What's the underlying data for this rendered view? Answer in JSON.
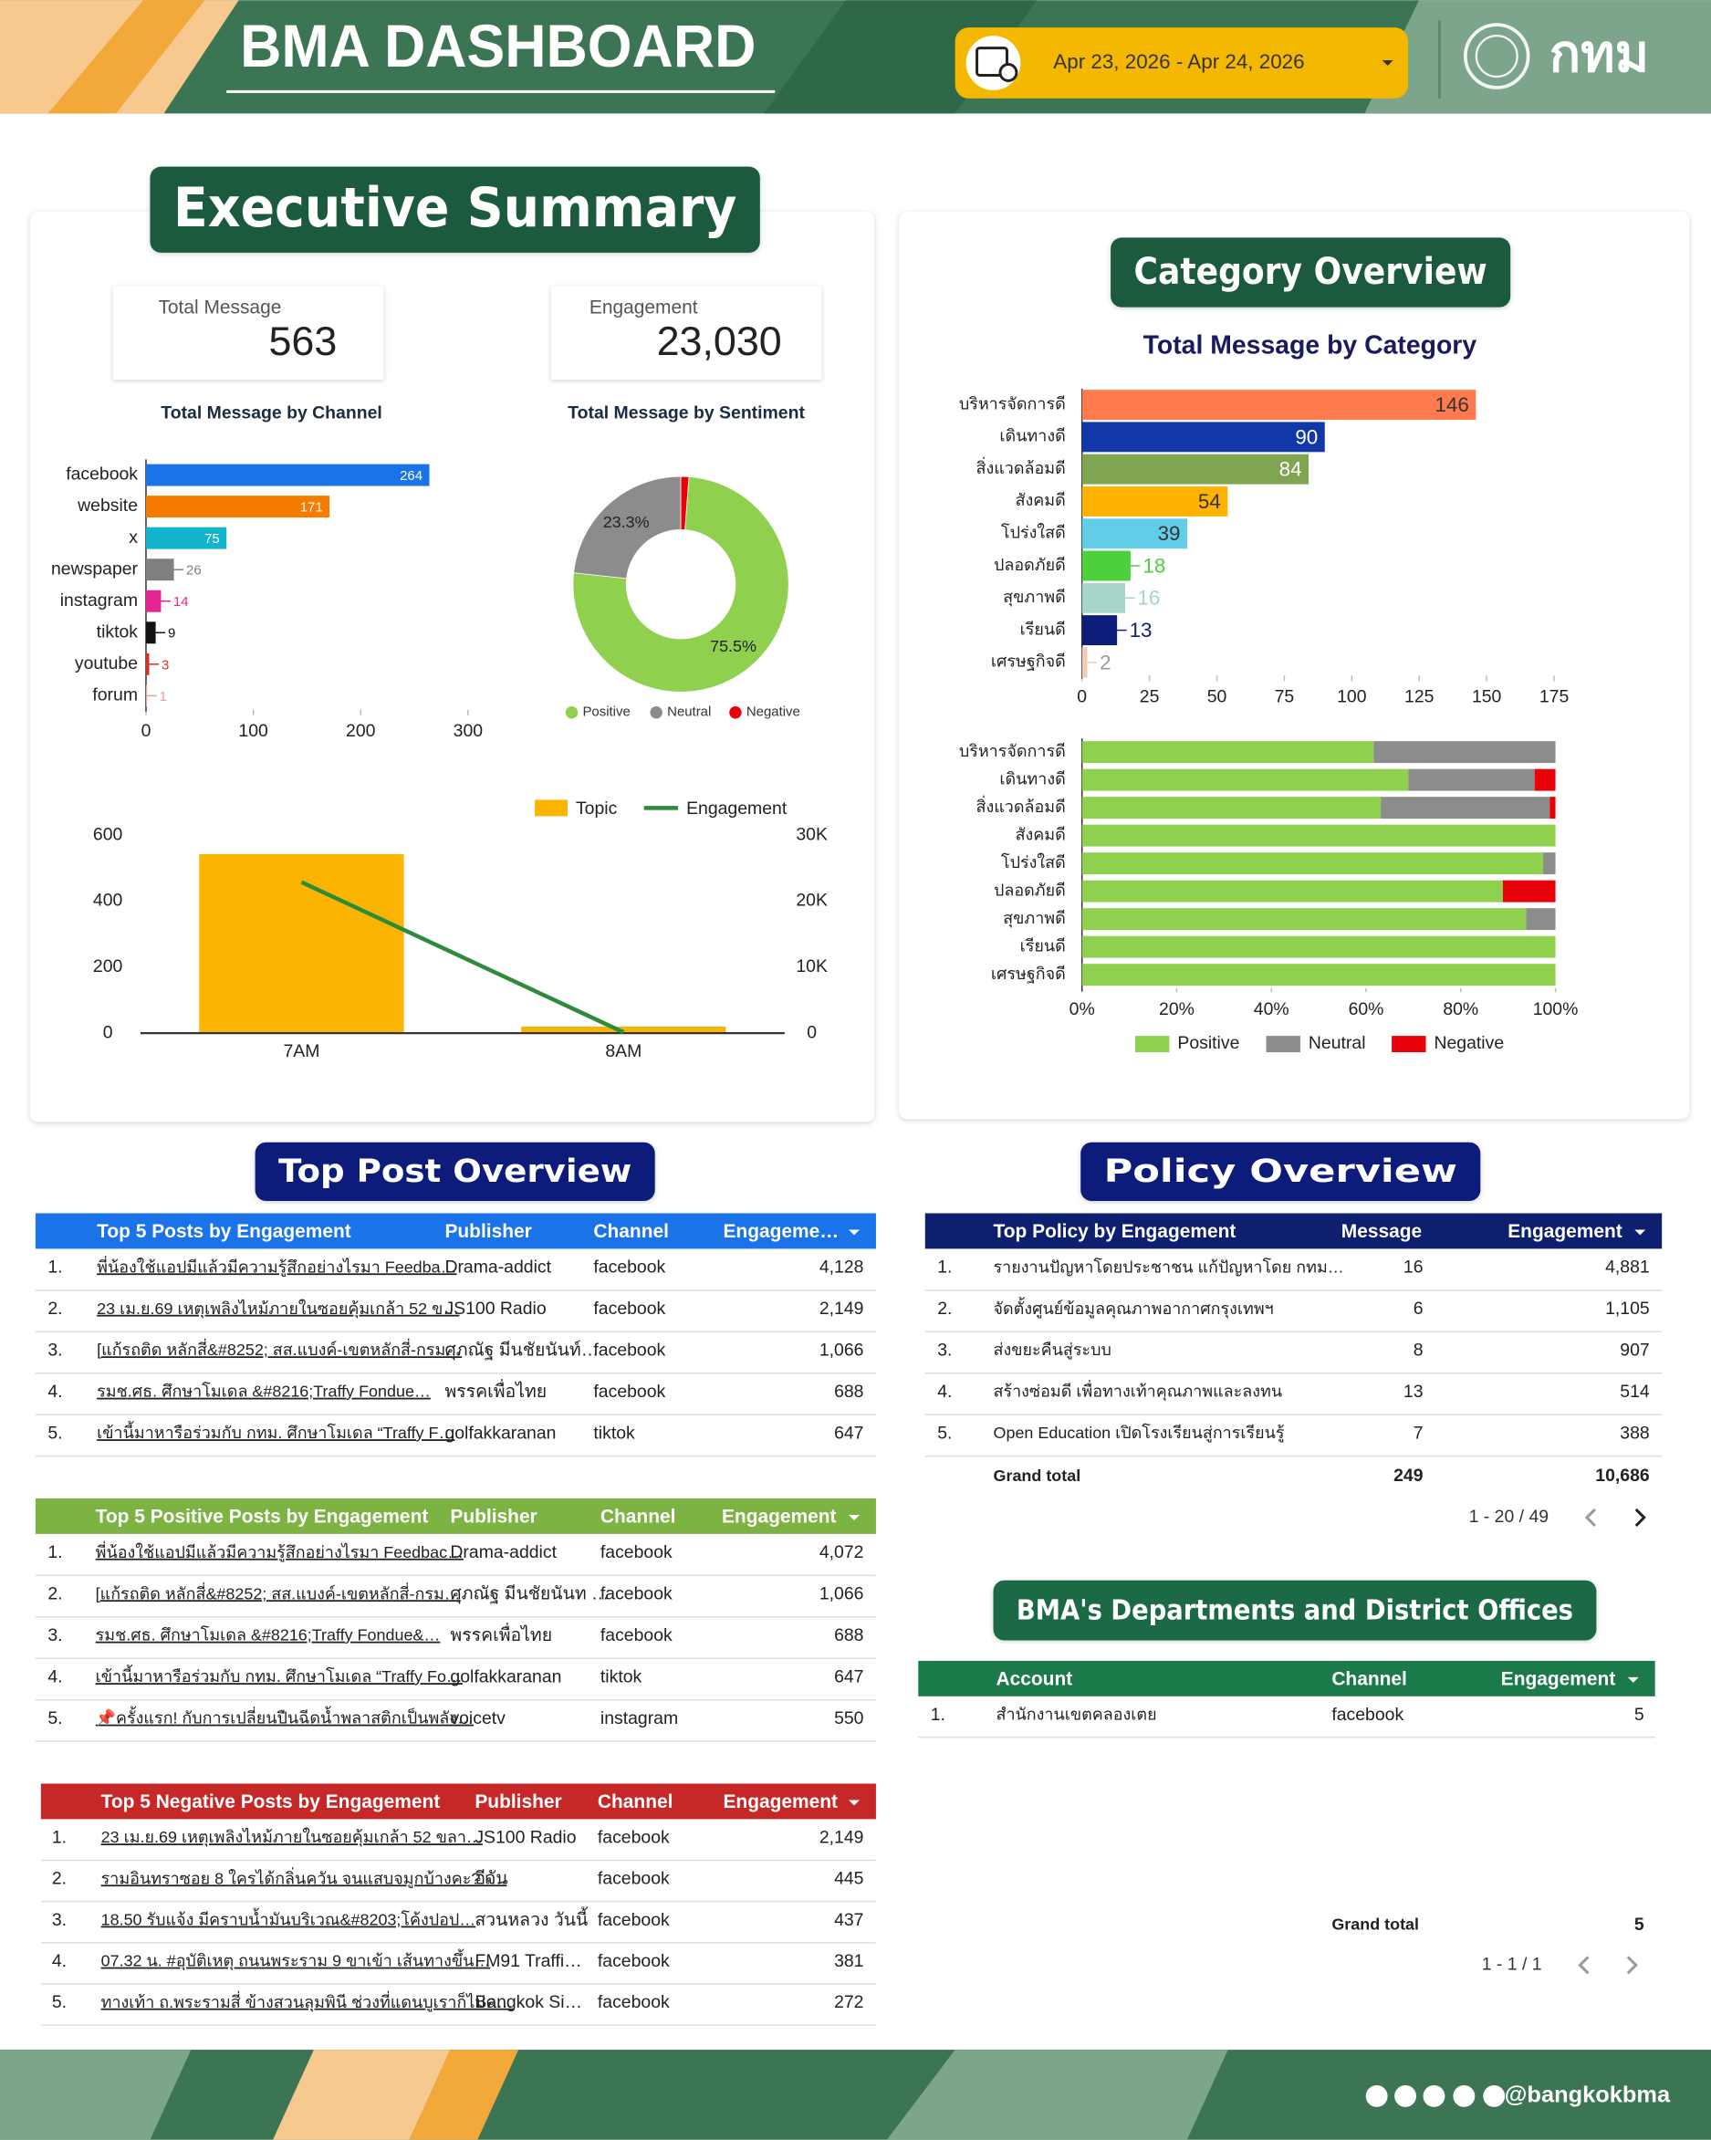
{
  "header": {
    "title": "BMA DASHBOARD",
    "date_range": "Apr 23, 2026 - Apr 24, 2026",
    "logo_text": "กทม"
  },
  "sections": {
    "executive": "Executive Summary",
    "category": "Category Overview",
    "top_post": "Top Post Overview",
    "policy": "Policy Overview",
    "departments": "BMA's Departments and District Offices"
  },
  "kpis": [
    {
      "label": "Total Message",
      "value": "563"
    },
    {
      "label": "Engagement",
      "value": "23,030"
    }
  ],
  "chart_data": [
    {
      "type": "hbar",
      "title": "Total Message by Channel",
      "categories": [
        "facebook",
        "website",
        "x",
        "newspaper",
        "instagram",
        "tiktok",
        "youtube",
        "forum"
      ],
      "values": [
        264,
        171,
        75,
        26,
        14,
        9,
        3,
        1
      ],
      "colors": [
        "#1a73e8",
        "#f57c00",
        "#12b5cb",
        "#7f7f7f",
        "#e52592",
        "#111111",
        "#d93025",
        "#e8a0a0"
      ],
      "xlim": [
        0,
        300
      ],
      "xticks": [
        0,
        100,
        200,
        300
      ]
    },
    {
      "type": "donut",
      "title": "Total Message by Sentiment",
      "categories": [
        "Positive",
        "Neutral",
        "Negative"
      ],
      "values": [
        75.5,
        23.3,
        1.2
      ],
      "value_labels": [
        "75.5%",
        "23.3%",
        null
      ],
      "colors": [
        "#8fd14f",
        "#8c8c8c",
        "#e8000b"
      ]
    },
    {
      "type": "combo",
      "categories": [
        "7AM",
        "8AM"
      ],
      "series": [
        {
          "name": "Topic",
          "color": "#fbb400",
          "values": [
            543,
            20
          ]
        },
        {
          "name": "Engagement",
          "color": "#2e8b3a",
          "axis": "y2",
          "values": [
            22900,
            130
          ]
        }
      ],
      "ylim": [
        0,
        600
      ],
      "yticks": [
        0,
        200,
        400,
        600
      ],
      "y2lim": [
        0,
        30000
      ],
      "y2ticks": [
        0,
        {
          "value": 10000,
          "label": "10K"
        },
        {
          "value": 20000,
          "label": "20K"
        },
        {
          "value": 30000,
          "label": "30K"
        }
      ]
    },
    {
      "type": "hbar",
      "title": "Total Message by Category",
      "categories": [
        "บริหารจัดการดี",
        "เดินทางดี",
        "สิ่งแวดล้อมดี",
        "สังคมดี",
        "โปร่งใสดี",
        "ปลอดภัยดี",
        "สุขภาพดี",
        "เรียนดี",
        "เศรษฐกิจดี"
      ],
      "values": [
        146,
        90,
        84,
        54,
        39,
        18,
        16,
        13,
        2
      ],
      "colors": [
        "#ff7b4f",
        "#1237a8",
        "#7fa550",
        "#ffb300",
        "#62cde6",
        "#4cd03c",
        "#a7d5c9",
        "#0c1e7a",
        "#f3c9b8"
      ],
      "xlim": [
        0,
        175
      ],
      "xticks": [
        0,
        25,
        50,
        75,
        100,
        125,
        150,
        175
      ]
    },
    {
      "type": "stacked100",
      "categories": [
        "บริหารจัดการดี",
        "เดินทางดี",
        "สิ่งแวดล้อมดี",
        "สังคมดี",
        "โปร่งใสดี",
        "ปลอดภัยดี",
        "สุขภาพดี",
        "เรียนดี",
        "เศรษฐกิจดี"
      ],
      "series": [
        {
          "name": "Positive",
          "color": "#8fd14f",
          "values": [
            61.6,
            68.9,
            63.1,
            100,
            97.4,
            88.9,
            93.8,
            100,
            100
          ]
        },
        {
          "name": "Neutral",
          "color": "#8c8c8c",
          "values": [
            38.4,
            26.7,
            35.7,
            0,
            2.6,
            0,
            6.2,
            0,
            0
          ]
        },
        {
          "name": "Negative",
          "color": "#e8000b",
          "values": [
            0,
            4.4,
            1.2,
            0,
            0,
            11.1,
            0,
            0,
            0
          ]
        }
      ],
      "xlim": [
        0,
        100
      ],
      "xticks": [
        {
          "value": 0,
          "label": "0%"
        },
        {
          "value": 20,
          "label": "20%"
        },
        {
          "value": 40,
          "label": "40%"
        },
        {
          "value": 60,
          "label": "60%"
        },
        {
          "value": 80,
          "label": "80%"
        },
        {
          "value": 100,
          "label": "100%"
        }
      ]
    }
  ],
  "tables": {
    "top_posts": {
      "header_color": "#1a73e8",
      "header": [
        "Top 5 Posts by Engagement",
        "Publisher",
        "Channel",
        "Engageme…"
      ],
      "rows": [
        [
          "1.",
          "พี่น้องใช้แอปมีแล้วมีความรู้สึกอย่างไรมา Feedba…",
          "Drama-addict",
          "facebook",
          "4,128"
        ],
        [
          "2.",
          "23 เม.ย.69 เหตุเพลิงไหม้ภายในซอยคุ้มเกล้า 52 ข…",
          "JS100 Radio",
          "facebook",
          "2,149"
        ],
        [
          "3.",
          "[แก้รถติด หลักสี่&#8252; สส.แบงค์-เขตหลักสี่-กรม…",
          "ศุภณัฐ มีนชัยนันท์…",
          "facebook",
          "1,066"
        ],
        [
          "4.",
          "รมช.ศธ. ศึกษาโมเดล &#8216;Traffy Fondue…",
          "พรรคเพื่อไทย",
          "facebook",
          "688"
        ],
        [
          "5.",
          "เข้านี้มาหารือร่วมกับ กทม. ศึกษาโมเดล “Traffy F…",
          "golfakkaranan",
          "tiktok",
          "647"
        ]
      ]
    },
    "positive_posts": {
      "header_color": "#7cb342",
      "header": [
        "Top 5 Positive Posts by Engagement",
        "Publisher",
        "Channel",
        "Engagement"
      ],
      "rows": [
        [
          "1.",
          "พี่น้องใช้แอปมีแล้วมีความรู้สึกอย่างไรมา Feedbac…",
          "Drama-addict",
          "facebook",
          "4,072"
        ],
        [
          "2.",
          "[แก้รถติด หลักสี่&#8252; สส.แบงค์-เขตหลักสี่-กรม…",
          "ศุภณัฐ มีนชัยนันท …",
          "facebook",
          "1,066"
        ],
        [
          "3.",
          "รมช.ศธ. ศึกษาโมเดล &#8216;Traffy Fondue&…",
          "พรรคเพื่อไทย",
          "facebook",
          "688"
        ],
        [
          "4.",
          "เข้านี้มาหารือร่วมกับ กทม. ศึกษาโมเดล “Traffy Fo…",
          "golfakkaranan",
          "tiktok",
          "647"
        ],
        [
          "5.",
          "📌ครั้งแรก! กับการเปลี่ยนปืนฉีดน้ำพลาสติกเป็นพลัง…",
          "voicetv",
          "instagram",
          "550"
        ]
      ]
    },
    "negative_posts": {
      "header_color": "#c62828",
      "header": [
        "Top 5 Negative Posts by Engagement",
        "Publisher",
        "Channel",
        "Engagement"
      ],
      "rows": [
        [
          "1.",
          "23 เม.ย.69 เหตุเพลิงไหม้ภายในซอยคุ้มเกล้า 52 ขลา…",
          "JS100 Radio",
          "facebook",
          "2,149"
        ],
        [
          "2.",
          "รามอินทราซอย 8 ใครได้กลิ่นควัน จนแสบจมูกบ้างคะ? เ…",
          "อีจัน",
          "facebook",
          "445"
        ],
        [
          "3.",
          "18.50 รับแจ้ง มีคราบน้ำมันบริเวณ&#8203;โค้งปอป…",
          "สวนหลวง วันนี้",
          "facebook",
          "437"
        ],
        [
          "4.",
          "07.32 น. #อุบัติเหตุ ถนนพระราม 9 ขาเข้า เส้นทางขึ้น…",
          "FM91 Traffi…",
          "facebook",
          "381"
        ],
        [
          "5.",
          "ทางเท้า ถ.พระรามสี่ ข้างสวนลุมพินี ช่วงที่แดนบูเราก็ไม่ค…",
          "Bangkok Si…",
          "facebook",
          "272"
        ]
      ]
    },
    "top_policy": {
      "header_color": "#0d1f6e",
      "header": [
        "Top Policy by Engagement",
        "Message",
        "Engagement"
      ],
      "rows": [
        [
          "1.",
          "รายงานปัญหาโดยประชาชน แก้ปัญหาโดย กทม…",
          "16",
          "4,881"
        ],
        [
          "2.",
          "จัดตั้งศูนย์ข้อมูลคุณภาพอากาศกรุงเทพฯ",
          "6",
          "1,105"
        ],
        [
          "3.",
          "ส่งขยะคืนสู่ระบบ",
          "8",
          "907"
        ],
        [
          "4.",
          "สร้างซ่อมดี เพื่อทางเท้าคุณภาพและลงทน",
          "13",
          "514"
        ],
        [
          "5.",
          "Open Education เปิดโรงเรียนสู่การเรียนรู้",
          "7",
          "388"
        ]
      ],
      "grand_total": [
        "Grand total",
        "249",
        "10,686"
      ],
      "pagination": "1 - 20 / 49"
    },
    "departments": {
      "header_color": "#1b7a4a",
      "header": [
        "Account",
        "Channel",
        "Engagement"
      ],
      "rows": [
        [
          "1.",
          "สำนักงานเขตคลองเตย",
          "facebook",
          "5"
        ]
      ],
      "grand_total": [
        "Grand total",
        "5"
      ],
      "pagination": "1 - 1 / 1"
    }
  },
  "footer": {
    "handle": "@bangkokbma"
  }
}
